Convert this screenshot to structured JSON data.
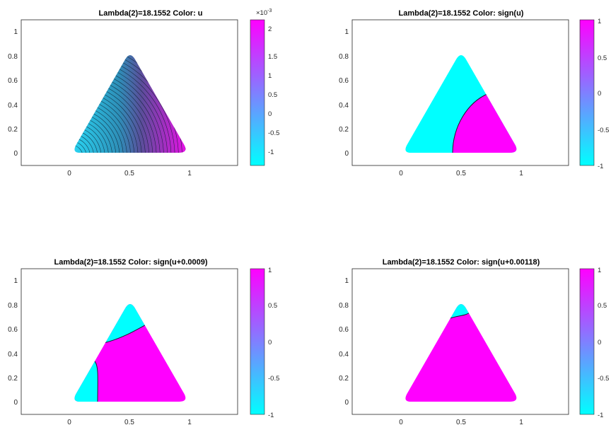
{
  "figure": {
    "colormap": {
      "low": "#00FFFF",
      "high": "#FF00FF"
    },
    "triangle": {
      "vertices": [
        [
          0.0,
          0.0
        ],
        [
          1.0,
          0.0
        ],
        [
          0.5,
          0.866
        ]
      ],
      "corner_radius": 0.06
    }
  },
  "chart_data": [
    {
      "type": "heatmap",
      "title": "Lambda(2)=18.1552   Color: u",
      "xlim": [
        -0.4,
        1.4
      ],
      "ylim": [
        -0.1,
        1.1
      ],
      "xticks": [
        "0",
        "0.5",
        "1"
      ],
      "yticks": [
        "0",
        "0.2",
        "0.4",
        "0.6",
        "0.8",
        "1"
      ],
      "colorbar": {
        "range": [
          -1.3,
          2.4
        ],
        "ticks": [
          "-1",
          "-0.5",
          "0",
          "0.5",
          "1",
          "1.5",
          "2"
        ],
        "multiplier": "×10",
        "exponent": "-3"
      },
      "field": "u",
      "contours": true,
      "grid": false
    },
    {
      "type": "heatmap",
      "title": "Lambda(2)=18.1552   Color: sign(u)",
      "xlim": [
        -0.4,
        1.4
      ],
      "ylim": [
        -0.1,
        1.1
      ],
      "xticks": [
        "0",
        "0.5",
        "1"
      ],
      "yticks": [
        "0",
        "0.2",
        "0.4",
        "0.6",
        "0.8",
        "1"
      ],
      "colorbar": {
        "range": [
          -1,
          1
        ],
        "ticks": [
          "-1",
          "-0.5",
          "0",
          "0.5",
          "1"
        ]
      },
      "field": "sign(u)",
      "shift": 0.0,
      "grid": false
    },
    {
      "type": "heatmap",
      "title": "Lambda(2)=18.1552   Color: sign(u+0.0009)",
      "xlim": [
        -0.4,
        1.4
      ],
      "ylim": [
        -0.1,
        1.1
      ],
      "xticks": [
        "0",
        "0.5",
        "1"
      ],
      "yticks": [
        "0",
        "0.2",
        "0.4",
        "0.6",
        "0.8",
        "1"
      ],
      "colorbar": {
        "range": [
          -1,
          1
        ],
        "ticks": [
          "-1",
          "-0.5",
          "0",
          "0.5",
          "1"
        ]
      },
      "field": "sign(u+0.0009)",
      "shift": 0.0009,
      "grid": false
    },
    {
      "type": "heatmap",
      "title": "Lambda(2)=18.1552   Color: sign(u+0.00118)",
      "xlim": [
        -0.4,
        1.4
      ],
      "ylim": [
        -0.1,
        1.1
      ],
      "xticks": [
        "0",
        "0.5",
        "1"
      ],
      "yticks": [
        "0",
        "0.2",
        "0.4",
        "0.6",
        "0.8",
        "1"
      ],
      "colorbar": {
        "range": [
          -1,
          1
        ],
        "ticks": [
          "-1",
          "-0.5",
          "0",
          "0.5",
          "1"
        ]
      },
      "field": "sign(u+0.00118)",
      "shift": 0.00118,
      "grid": false
    }
  ]
}
